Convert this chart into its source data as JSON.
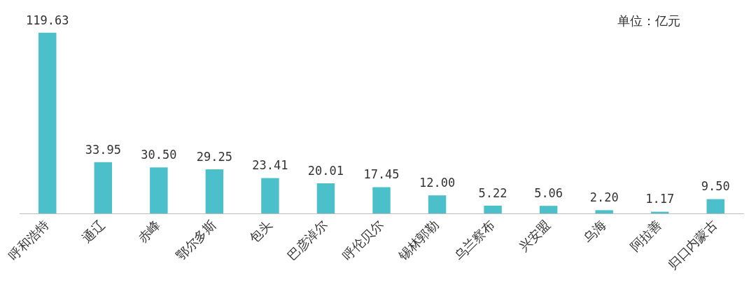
{
  "chart_data": {
    "type": "bar",
    "categories": [
      "呼和浩特",
      "通辽",
      "赤峰",
      "鄂尔多斯",
      "包头",
      "巴彦淖尔",
      "呼伦贝尔",
      "锡林郭勒",
      "乌兰察布",
      "兴安盟",
      "乌海",
      "阿拉善",
      "归口内蒙古"
    ],
    "values": [
      119.63,
      33.95,
      30.5,
      29.25,
      23.41,
      20.01,
      17.45,
      12.0,
      5.22,
      5.06,
      2.2,
      1.17,
      9.5
    ],
    "value_labels": [
      "119.63",
      "33.95",
      "30.50",
      "29.25",
      "23.41",
      "20.01",
      "17.45",
      "12.00",
      "5.22",
      "5.06",
      "2.20",
      "1.17",
      "9.50"
    ],
    "color": "#4bbfca",
    "grid": false,
    "legend": false,
    "annotations": [
      "单位：亿元"
    ]
  }
}
